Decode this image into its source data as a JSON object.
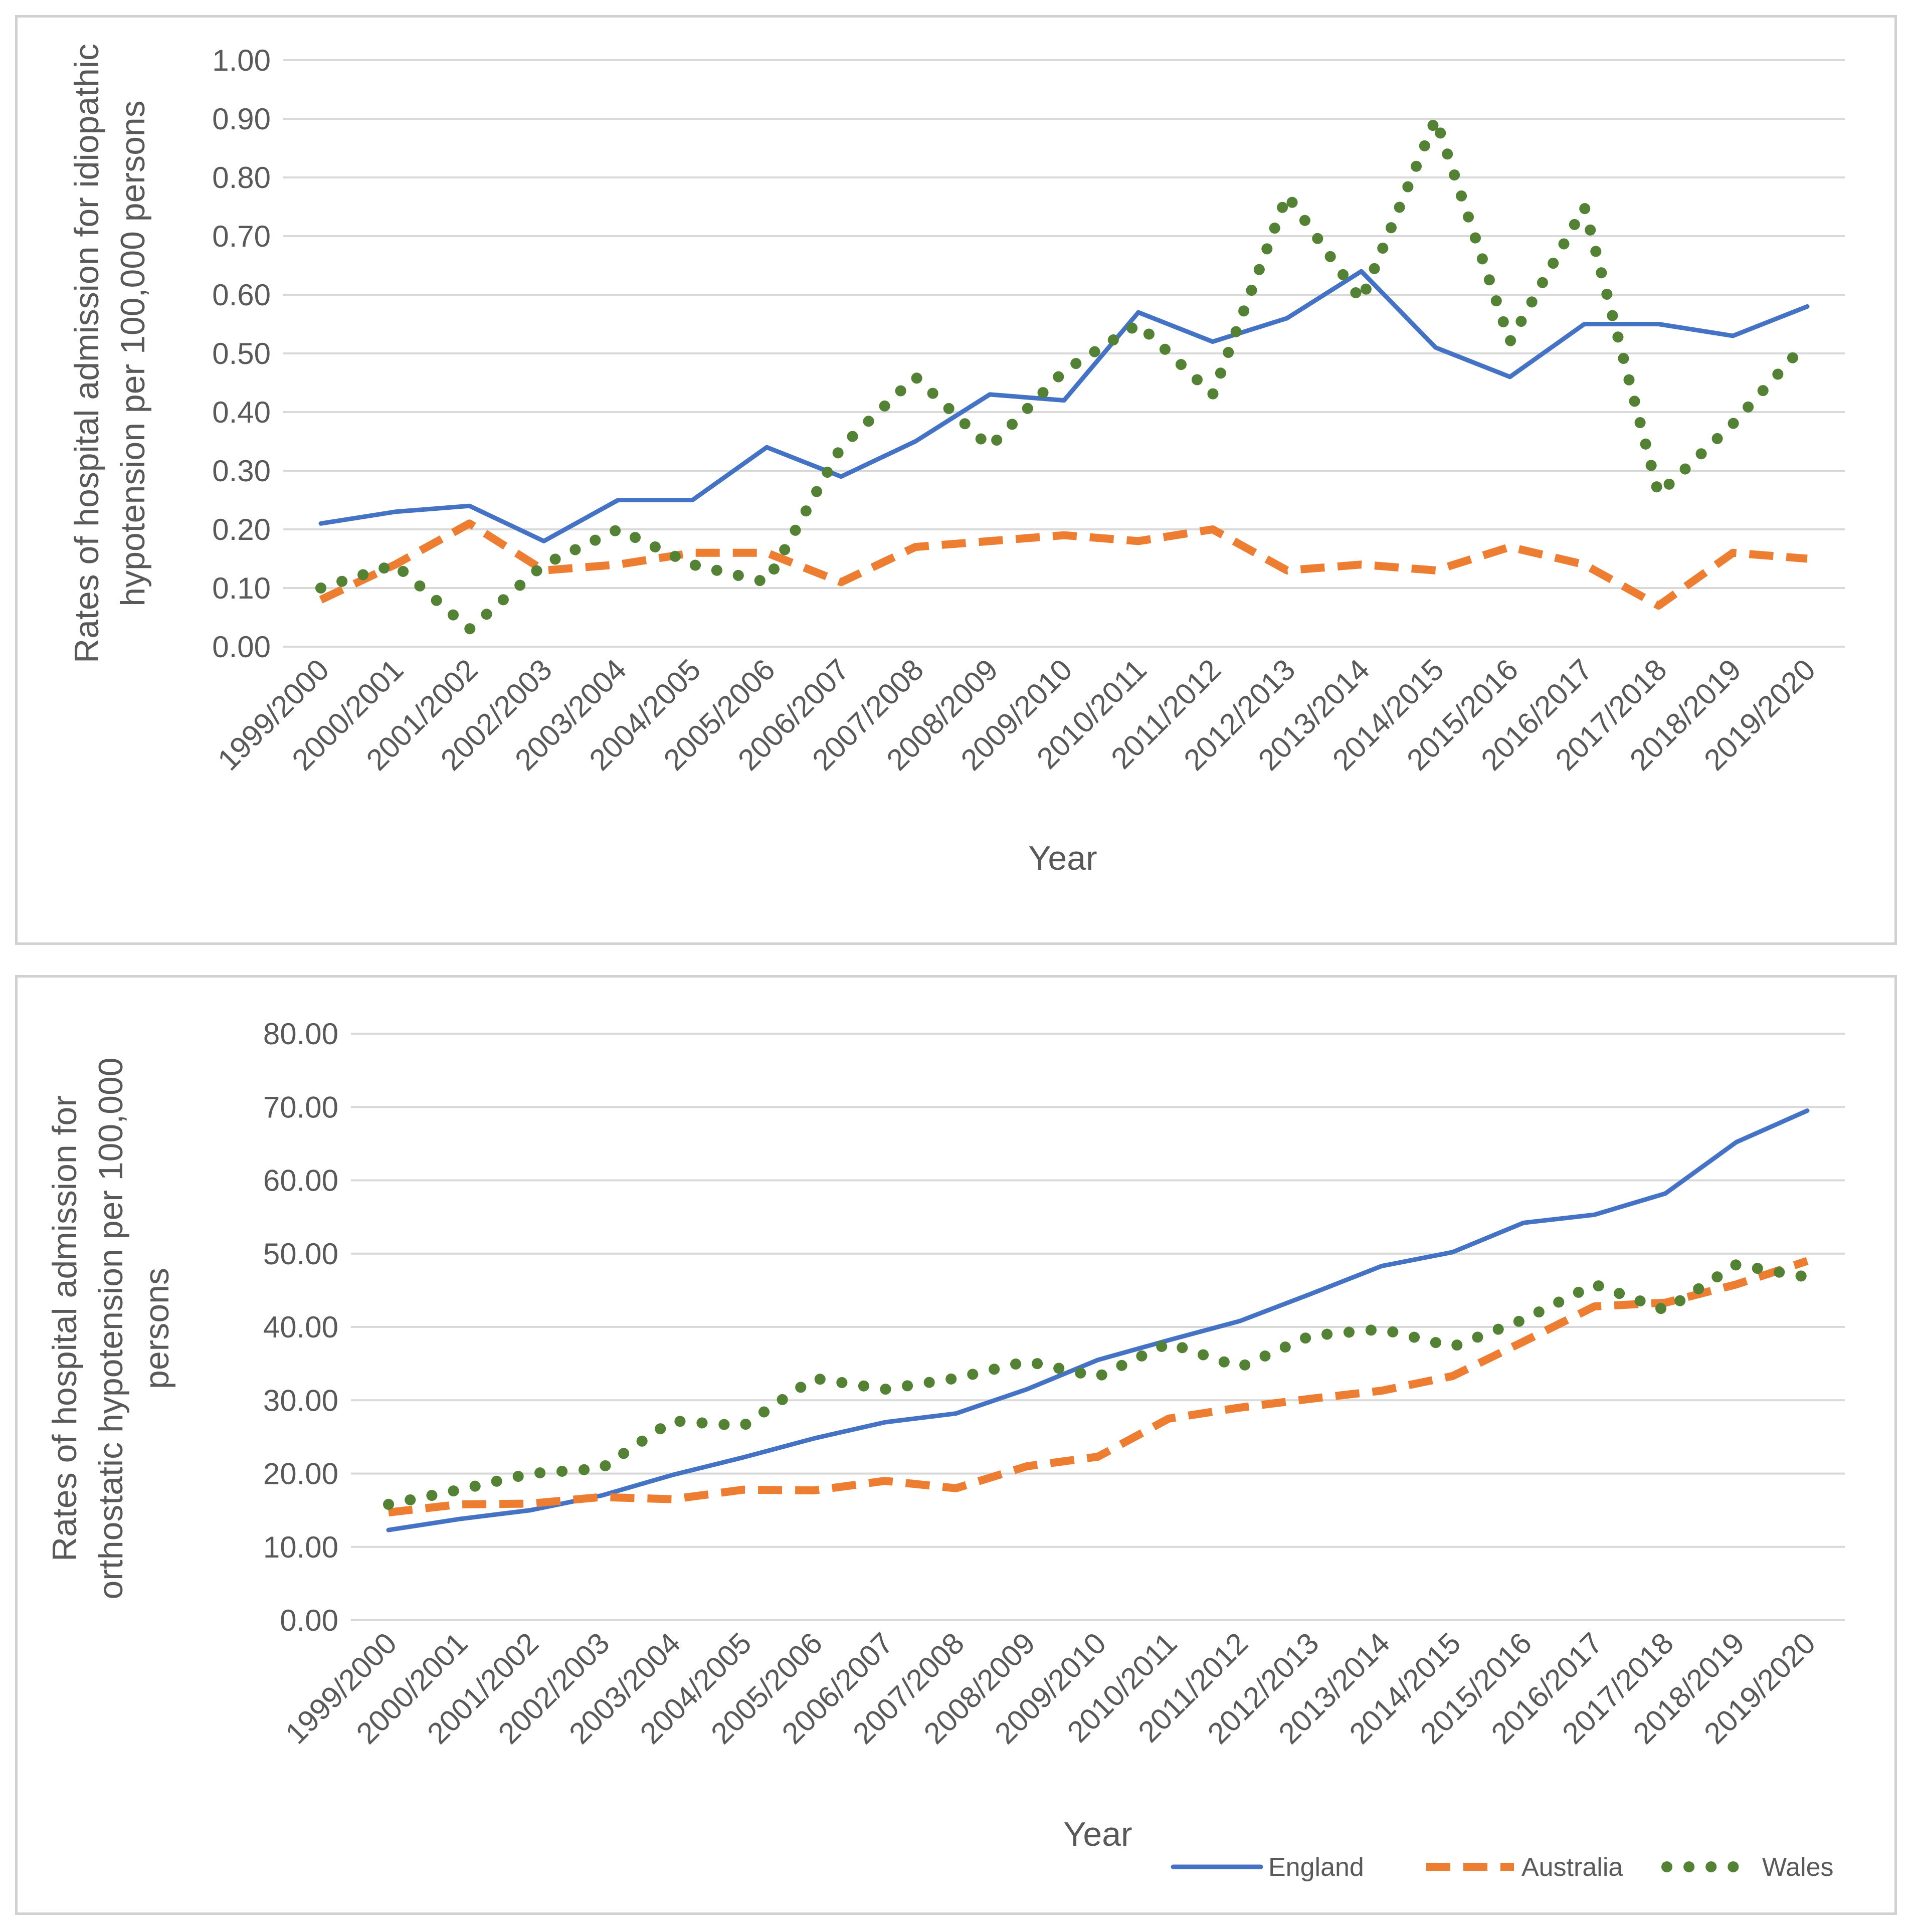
{
  "chart_data": [
    {
      "type": "line",
      "title": "",
      "xlabel": "Year",
      "ylabel": "Rates of hospital admission for idiopathic hypotension per 100,000 persons",
      "ylim": [
        0,
        1
      ],
      "yticks": [
        "0.00",
        "0.10",
        "0.20",
        "0.30",
        "0.40",
        "0.50",
        "0.60",
        "0.70",
        "0.80",
        "0.90",
        "1.00"
      ],
      "grid": true,
      "categories": [
        "1999/2000",
        "2000/2001",
        "2001/2002",
        "2002/2003",
        "2003/2004",
        "2004/2005",
        "2005/2006",
        "2006/2007",
        "2007/2008",
        "2008/2009",
        "2009/2010",
        "2010/2011",
        "2011/2012",
        "2012/2013",
        "2013/2014",
        "2014/2015",
        "2015/2016",
        "2016/2017",
        "2017/2018",
        "2018/2019",
        "2019/2020"
      ],
      "series": [
        {
          "name": "England",
          "style": "solid",
          "color": "#4472C4",
          "values": [
            0.21,
            0.23,
            0.24,
            0.18,
            0.25,
            0.25,
            0.34,
            0.29,
            0.35,
            0.43,
            0.42,
            0.57,
            0.52,
            0.56,
            0.64,
            0.51,
            0.46,
            0.55,
            0.55,
            0.53,
            0.58
          ]
        },
        {
          "name": "Australia",
          "style": "dashed",
          "color": "#ED7D31",
          "values": [
            0.08,
            0.14,
            0.21,
            0.13,
            0.14,
            0.16,
            0.16,
            0.11,
            0.17,
            0.18,
            0.19,
            0.18,
            0.2,
            0.13,
            0.14,
            0.13,
            0.17,
            0.14,
            0.07,
            0.16,
            0.15
          ]
        },
        {
          "name": "Wales",
          "style": "dotted",
          "color": "#548235",
          "values": [
            0.1,
            0.14,
            0.03,
            0.14,
            0.2,
            0.14,
            0.11,
            0.34,
            0.46,
            0.34,
            0.47,
            0.55,
            0.43,
            0.77,
            0.59,
            0.9,
            0.52,
            0.75,
            0.26,
            0.38,
            0.52
          ]
        }
      ]
    },
    {
      "type": "line",
      "title": "",
      "xlabel": "Year",
      "ylabel": "Rates of hospital admission for orthostatic hypotension per 100,000 persons",
      "ylim": [
        0,
        80
      ],
      "yticks": [
        "0.00",
        "10.00",
        "20.00",
        "30.00",
        "40.00",
        "50.00",
        "60.00",
        "70.00",
        "80.00"
      ],
      "grid": true,
      "legend_position": "bottom-right",
      "categories": [
        "1999/2000",
        "2000/2001",
        "2001/2002",
        "2002/2003",
        "2003/2004",
        "2004/2005",
        "2005/2006",
        "2006/2007",
        "2007/2008",
        "2008/2009",
        "2009/2010",
        "2010/2011",
        "2011/2012",
        "2012/2013",
        "2013/2014",
        "2014/2015",
        "2015/2016",
        "2016/2017",
        "2017/2018",
        "2018/2019",
        "2019/2020"
      ],
      "series": [
        {
          "name": "England",
          "style": "solid",
          "color": "#4472C4",
          "values": [
            12.3,
            13.8,
            15.0,
            17.0,
            19.8,
            22.2,
            24.8,
            27.0,
            28.2,
            31.5,
            35.5,
            38.2,
            40.8,
            44.5,
            48.3,
            50.2,
            54.2,
            55.3,
            58.2,
            65.2,
            69.5
          ]
        },
        {
          "name": "Australia",
          "style": "dashed",
          "color": "#ED7D31",
          "values": [
            14.7,
            15.8,
            15.9,
            16.8,
            16.5,
            17.8,
            17.7,
            19.0,
            18.0,
            21.0,
            22.3,
            27.5,
            29.0,
            30.2,
            31.3,
            33.3,
            38.0,
            42.8,
            43.3,
            45.8,
            49.0
          ]
        },
        {
          "name": "Wales",
          "style": "dotted",
          "color": "#548235",
          "values": [
            15.8,
            17.8,
            20.0,
            20.7,
            27.2,
            26.5,
            33.0,
            31.5,
            33.0,
            35.3,
            33.2,
            37.8,
            34.5,
            38.8,
            39.7,
            37.3,
            41.0,
            45.8,
            42.3,
            48.5,
            46.8
          ]
        }
      ]
    }
  ]
}
